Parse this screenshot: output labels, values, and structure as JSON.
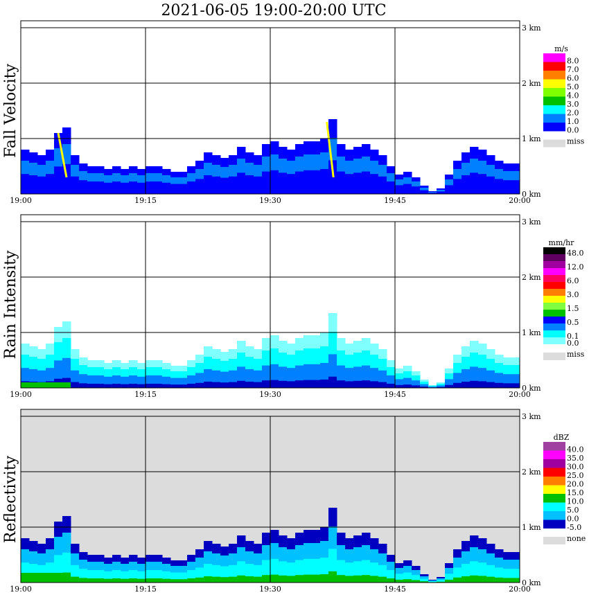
{
  "chart_data": {
    "type": "heatmap",
    "title": "2021-06-05   19:00-20:00 UTC",
    "x_ticks": [
      "19:00",
      "19:15",
      "19:30",
      "19:45",
      "20:00"
    ],
    "y_ticks": [
      "0 km",
      "1 km",
      "2 km",
      "3 km"
    ],
    "ylim_km": [
      0,
      3
    ],
    "xlim_min": [
      0,
      60
    ],
    "echo_top_km_per_minute": [
      0.8,
      0.75,
      0.7,
      0.8,
      1.1,
      1.2,
      0.7,
      0.55,
      0.5,
      0.5,
      0.45,
      0.5,
      0.45,
      0.5,
      0.45,
      0.5,
      0.5,
      0.45,
      0.4,
      0.4,
      0.5,
      0.6,
      0.75,
      0.7,
      0.65,
      0.7,
      0.85,
      0.75,
      0.7,
      0.9,
      0.95,
      0.85,
      0.8,
      0.9,
      0.95,
      0.95,
      1.0,
      1.35,
      0.9,
      0.8,
      0.85,
      0.9,
      0.8,
      0.7,
      0.5,
      0.35,
      0.4,
      0.3,
      0.15,
      0.05,
      0.1,
      0.35,
      0.6,
      0.75,
      0.85,
      0.8,
      0.7,
      0.6,
      0.55,
      0.55
    ],
    "panels": [
      {
        "ylabel": "Fall Velocity",
        "unit": "m/s",
        "background": "#ffffff",
        "legend": [
          {
            "label": "8.0",
            "color": "#ff00ff"
          },
          {
            "label": "7.0",
            "color": "#ff0000"
          },
          {
            "label": "6.0",
            "color": "#ff8000"
          },
          {
            "label": "5.0",
            "color": "#ffff00"
          },
          {
            "label": "4.0",
            "color": "#80ff00"
          },
          {
            "label": "3.0",
            "color": "#00c000"
          },
          {
            "label": "2.0",
            "color": "#00ffff"
          },
          {
            "label": "1.0",
            "color": "#0080ff"
          },
          {
            "label": "0.0",
            "color": "#0000ff"
          }
        ],
        "missing_label": "miss",
        "layers": [
          "#0000ff",
          "#0000ff",
          "#0080ff",
          "#0000ff"
        ]
      },
      {
        "ylabel": "Rain Intensity",
        "unit": "mm/hr",
        "background": "#ffffff",
        "legend": [
          {
            "label": "48.0",
            "color": "#000000"
          },
          {
            "label": "",
            "color": "#600060"
          },
          {
            "label": "12.0",
            "color": "#a000a0"
          },
          {
            "label": "",
            "color": "#ff00ff"
          },
          {
            "label": "6.0",
            "color": "#ff0060"
          },
          {
            "label": "",
            "color": "#ff0000"
          },
          {
            "label": "3.0",
            "color": "#ff8000"
          },
          {
            "label": "",
            "color": "#ffff00"
          },
          {
            "label": "1.5",
            "color": "#80ff40"
          },
          {
            "label": "",
            "color": "#00c000"
          },
          {
            "label": "0.5",
            "color": "#0000ff"
          },
          {
            "label": "",
            "color": "#0080ff"
          },
          {
            "label": "0.1",
            "color": "#00ffff"
          },
          {
            "label": "0.0",
            "color": "#80ffff"
          }
        ],
        "missing_label": "miss",
        "layers": [
          "#0000c0",
          "#0080ff",
          "#00ffff",
          "#80ffff"
        ]
      },
      {
        "ylabel": "Reflectivity",
        "unit": "dBZ",
        "background": "#dcdcdc",
        "legend": [
          {
            "label": "40.0",
            "color": "#a040a0"
          },
          {
            "label": "35.0",
            "color": "#ff00ff"
          },
          {
            "label": "30.0",
            "color": "#a000a0"
          },
          {
            "label": "25.0",
            "color": "#ff0000"
          },
          {
            "label": "20.0",
            "color": "#ff8000"
          },
          {
            "label": "15.0",
            "color": "#ffff00"
          },
          {
            "label": "10.0",
            "color": "#00c000"
          },
          {
            "label": "5.0",
            "color": "#00ffff"
          },
          {
            "label": "0.0",
            "color": "#00c0ff"
          },
          {
            "label": "-5.0",
            "color": "#0000c0"
          }
        ],
        "missing_label": "none",
        "layers": [
          "#00c000",
          "#00ffff",
          "#00c0ff",
          "#0000c0"
        ]
      }
    ]
  }
}
